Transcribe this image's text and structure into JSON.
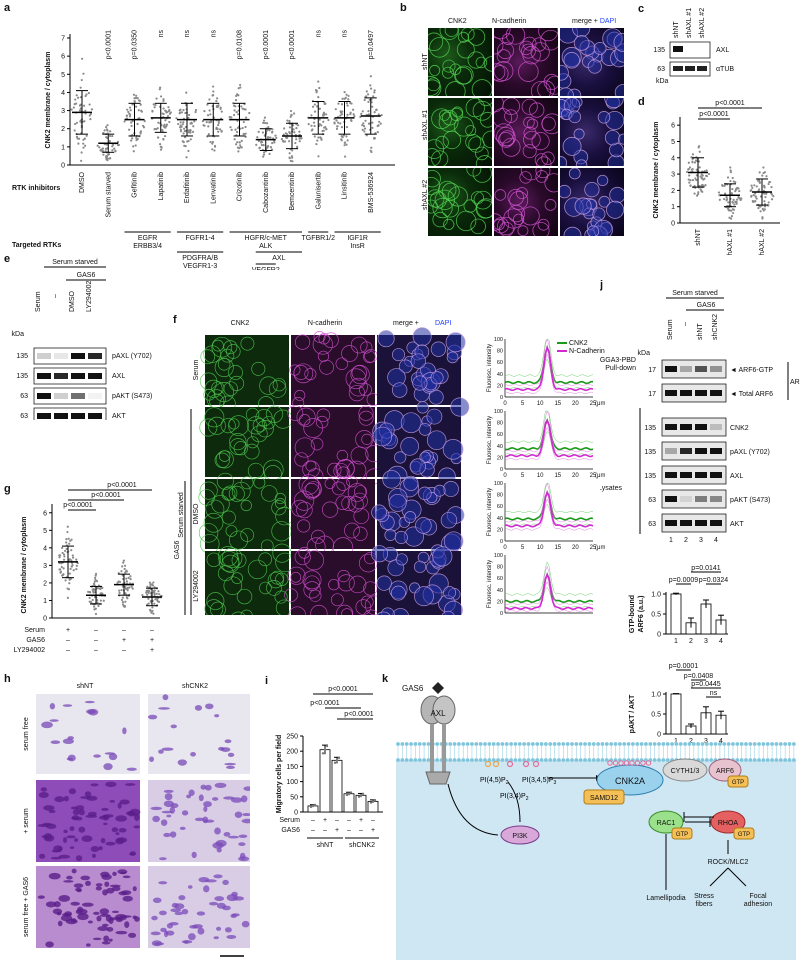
{
  "panels": {
    "a": {
      "label": "a",
      "ylabel": "CNK2 membrane / cytoplasm",
      "yticks": [
        "0",
        "1",
        "2",
        "3",
        "4",
        "5",
        "6",
        "7"
      ],
      "row_rtk_inhibitors": "RTK inhibitors",
      "row_targeted": "Targeted RTKs",
      "conditions": [
        "DMSO",
        "Serum starved",
        "Gefitinib",
        "Lapatinib",
        "Erdafitinib",
        "Lenvatinib",
        "Crizotinib",
        "Cabozantinib",
        "Bemcentinib",
        "Galunisertib",
        "Linsitinib",
        "BMS-536924"
      ],
      "pvalues": [
        "",
        "p<0.0001",
        "p=0.0350",
        "ns",
        "ns",
        "ns",
        "p=0.0108",
        "p<0.0001",
        "p<0.0001",
        "ns",
        "ns",
        "p=0.0497"
      ],
      "targets": [
        "EGFR\nERBB3/4",
        "FGFR1-4",
        "HGFR/c-MET\nALK",
        "TGFBR1/2",
        "PDGFRA/B\nVEGFR1-3",
        "AXL",
        "IGF1R\nInsR",
        "VEGFR2"
      ]
    },
    "b": {
      "label": "b",
      "cols": [
        "CNK2",
        "N-cadherin",
        "merge + "
      ],
      "dapi": "DAPI",
      "rows": [
        "shNT",
        "shAXL #1",
        "shAXL #2"
      ]
    },
    "c": {
      "label": "c",
      "lanes": [
        "shNT",
        "shAXL #1",
        "shAXL #2"
      ],
      "mw": [
        "135",
        "63"
      ],
      "bands": [
        "AXL",
        "αTUB"
      ],
      "kda": "kDa"
    },
    "d": {
      "label": "d",
      "ylabel": "CNK2 membrane / cytoplasm",
      "yticks": [
        "0",
        "1",
        "2",
        "3",
        "4",
        "5",
        "6"
      ],
      "cats": [
        "shNT",
        "shAXL #1",
        "shAXL #2"
      ],
      "p1": "p<0.0001",
      "p2": "p<0.0001"
    },
    "e": {
      "label": "e",
      "header": "Serum starved",
      "gas6": "GAS6",
      "lanes": [
        "Serum",
        "–",
        "DMSO",
        "LY294002"
      ],
      "mw": [
        "135",
        "135",
        "63",
        "63"
      ],
      "bands": [
        "pAXL (Y702)",
        "AXL",
        "pAKT (S473)",
        "AKT"
      ],
      "kda": "kDa"
    },
    "f": {
      "label": "f",
      "cols": [
        "CNK2",
        "N-cadherin",
        "merge + "
      ],
      "dapi": "DAPI",
      "rows": [
        "Serum",
        "",
        "DMSO",
        "LY294002"
      ],
      "serum_starved": "Serum starved",
      "gas6": "GAS6",
      "ylabel": "Fluoresc. intensity",
      "legend": [
        "CNK2",
        "N-Cadherin"
      ],
      "xunit": "(μm)",
      "xticks": [
        "0",
        "5",
        "10",
        "15",
        "20",
        "25"
      ],
      "yticks": [
        "0",
        "20",
        "40",
        "60",
        "80",
        "100"
      ]
    },
    "g": {
      "label": "g",
      "ylabel": "CNK2 membrane / cytoplasm",
      "yticks": [
        "0",
        "1",
        "2",
        "3",
        "4",
        "5",
        "6"
      ],
      "p1": "p<0.0001",
      "p2": "p<0.0001",
      "p3": "p<0.0001",
      "rows": [
        {
          "name": "Serum",
          "v": [
            "+",
            "–",
            "–",
            "–"
          ]
        },
        {
          "name": "GAS6",
          "v": [
            "–",
            "–",
            "+",
            "+"
          ]
        },
        {
          "name": "LY294002",
          "v": [
            "–",
            "–",
            "–",
            "+"
          ]
        }
      ]
    },
    "h": {
      "label": "h",
      "cols": [
        "shNT",
        "shCNK2"
      ],
      "rows": [
        "serum free",
        "+ serum",
        "serum free + GAS6"
      ]
    },
    "i": {
      "label": "i",
      "ylabel": "Migratory cells per field",
      "yticks": [
        "0",
        "50",
        "100",
        "150",
        "200",
        "250"
      ],
      "p1": "p<0.0001",
      "p2": "p<0.0001",
      "p3": "p<0.0001",
      "rows": [
        {
          "name": "Serum",
          "v": [
            "–",
            "+",
            "–",
            "–",
            "+",
            "–"
          ]
        },
        {
          "name": "GAS6",
          "v": [
            "–",
            "–",
            "+",
            "–",
            "–",
            "+"
          ]
        }
      ],
      "groups": [
        "shNT",
        "shCNK2"
      ]
    },
    "j": {
      "label": "j",
      "header": "Serum starved",
      "gas6": "GAS6",
      "lanes": [
        "Serum",
        "–",
        "shNT",
        "shCNK2"
      ],
      "kda": "kDa",
      "pulldown": "GGA3-PBD\nPull-down",
      "lysates": "Lysates",
      "arf6": "ARF6",
      "mw": [
        "17",
        "17",
        "135",
        "135",
        "135",
        "63",
        "63"
      ],
      "bands": [
        "◄ ARF6-GTP",
        "◄ Total ARF6",
        "CNK2",
        "pAXL (Y702)",
        "AXL",
        "pAKT (S473)",
        "AKT"
      ],
      "lane_nums": [
        "1",
        "2",
        "3",
        "4"
      ],
      "bar1": {
        "ylabel": "GTP-bound\nARF6 (a.u.)",
        "yticks": [
          "0",
          "0.5",
          "1.0"
        ],
        "p": [
          "p=0.0141",
          "p=0.0009",
          "p=0.0324"
        ]
      },
      "bar2": {
        "ylabel": "pAKT / AKT",
        "yticks": [
          "0",
          "0.5",
          "1.0"
        ],
        "p": [
          "p=0.0001",
          "p=0.0408",
          "p=0.0445",
          "ns"
        ]
      }
    },
    "k": {
      "label": "k",
      "gas6": "GAS6",
      "axl": "AXL",
      "pi45": "PI(4,5)P",
      "pi345": "PI(3,4,5)P",
      "pi34": "PI(3,4)P",
      "pi3k": "PI3K",
      "cnk2a": "CNK2A",
      "samd12": "SAMD12",
      "cyth": "CYTH1/3",
      "arf6": "ARF6",
      "gtp": "GTP",
      "rac1": "RAC1",
      "rhoa": "RHOA",
      "rock": "ROCK/MLC2",
      "lamell": "Lamellipodia",
      "stress": "Stress\nfibers",
      "focal": "Focal\nadhesion"
    }
  },
  "chart_data": [
    {
      "type": "scatter",
      "panel": "a",
      "ylabel": "CNK2 membrane / cytoplasm",
      "ylim": [
        0,
        7
      ],
      "categories": [
        "DMSO",
        "Serum starved",
        "Gefitinib",
        "Lapatinib",
        "Erdafitinib",
        "Lenvatinib",
        "Crizotinib",
        "Cabozantinib",
        "Bemcentinib",
        "Galunisertib",
        "Linsitinib",
        "BMS-536924"
      ],
      "means": [
        2.9,
        1.2,
        2.5,
        2.6,
        2.5,
        2.5,
        2.5,
        1.4,
        1.6,
        2.6,
        2.6,
        2.7
      ],
      "sd": [
        1.2,
        0.5,
        0.9,
        0.8,
        0.9,
        0.9,
        0.9,
        0.6,
        0.7,
        0.9,
        0.9,
        1.0
      ]
    },
    {
      "type": "scatter",
      "panel": "d",
      "ylabel": "CNK2 membrane / cytoplasm",
      "ylim": [
        0,
        6.5
      ],
      "categories": [
        "shNT",
        "shAXL #1",
        "shAXL #2"
      ],
      "means": [
        3.1,
        1.7,
        1.9
      ],
      "sd": [
        0.9,
        0.7,
        0.8
      ]
    },
    {
      "type": "scatter",
      "panel": "g",
      "ylabel": "CNK2 membrane / cytoplasm",
      "ylim": [
        0,
        6.5
      ],
      "categories": [
        "1",
        "2",
        "3",
        "4"
      ],
      "means": [
        3.2,
        1.3,
        1.9,
        1.2
      ],
      "sd": [
        0.9,
        0.5,
        0.6,
        0.5
      ]
    },
    {
      "type": "bar",
      "panel": "i",
      "ylabel": "Migratory cells per field",
      "ylim": [
        0,
        250
      ],
      "categories": [
        "1",
        "2",
        "3",
        "4",
        "5",
        "6"
      ],
      "values": [
        20,
        205,
        170,
        60,
        55,
        35
      ],
      "sd": [
        4,
        15,
        10,
        5,
        6,
        5
      ]
    },
    {
      "type": "bar",
      "panel": "j-top",
      "ylabel": "GTP-bound ARF6 (a.u.)",
      "ylim": [
        0,
        1.0
      ],
      "categories": [
        "1",
        "2",
        "3",
        "4"
      ],
      "values": [
        1.0,
        0.28,
        0.75,
        0.35
      ],
      "sd": [
        0.02,
        0.12,
        0.1,
        0.12
      ]
    },
    {
      "type": "bar",
      "panel": "j-bottom",
      "ylabel": "pAKT / AKT",
      "ylim": [
        0,
        1.0
      ],
      "categories": [
        "1",
        "2",
        "3",
        "4"
      ],
      "values": [
        1.0,
        0.2,
        0.53,
        0.47
      ],
      "sd": [
        0.01,
        0.05,
        0.15,
        0.1
      ]
    },
    {
      "type": "line",
      "panel": "f",
      "ylabel": "Fluoresc. intensity",
      "ylim": [
        0,
        100
      ],
      "xlim": [
        0,
        25
      ],
      "series": [
        {
          "name": "CNK2"
        },
        {
          "name": "N-Cadherin"
        }
      ]
    }
  ]
}
